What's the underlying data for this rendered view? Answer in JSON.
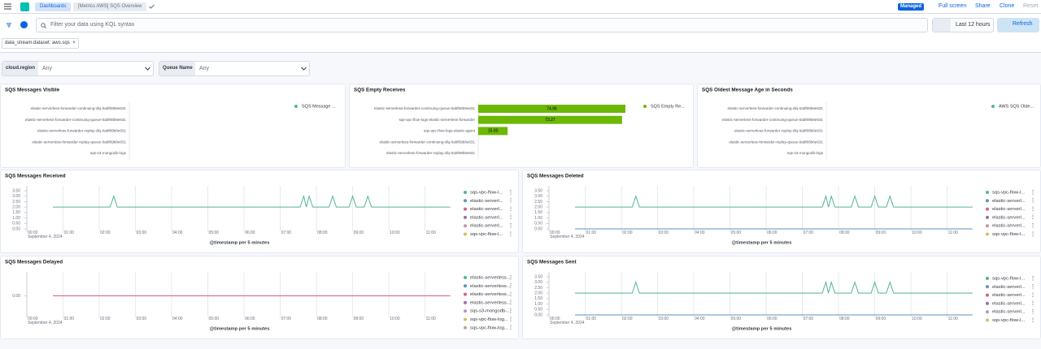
{
  "header": {
    "breadcrumbs": [
      "Dashboards",
      "[Metrics AWS] SQS Overview"
    ],
    "badge": "Managed",
    "actions": [
      "Full screen",
      "Share",
      "Clone",
      "Reset"
    ]
  },
  "query": {
    "placeholder": "Filter your data using KQL syntax",
    "time_range": "Last 12 hours",
    "refresh": "Refresh"
  },
  "filters": [
    "data_stream.dataset: aws.sqs"
  ],
  "controls": [
    {
      "label": "cloud.region",
      "value": "Any"
    },
    {
      "label": "Queue Name",
      "value": "Any"
    }
  ],
  "chart_data": [
    {
      "type": "bar",
      "orientation": "horizontal",
      "title": "SQS Messages Visible",
      "categories": [
        "elastic-serverless-forwarder-continuing-dlq-0abf89b8e631",
        "elastic-serverless-forwarder-continuing-queue-0abf89b8e631",
        "elastic-serverless-forwarder-replay-dlq-0abf89b8e631",
        "elastic-serverless-forwarder-replay-queue-0abf89b8e631",
        "sqs-s3-mongodb-logs"
      ],
      "series": [
        {
          "name": "SQS Message ...",
          "color": "#54b399",
          "values": [
            0,
            0,
            0,
            0,
            0
          ]
        }
      ]
    },
    {
      "type": "bar",
      "orientation": "horizontal",
      "title": "SQS Empty Receives",
      "categories": [
        "elastic-serverless-forwarder-continuing-queue-0abf89b8e631",
        "sqs-vpc-flow-logs-elastic-serverless-forwarder",
        "sqs-vpc-flow-logs-elastic-agent",
        "elastic-serverless-forwarder-continuing-dlq-0abf89b8e631",
        "elastic-serverless-forwarder-replay-dlq-0abf89b8e631"
      ],
      "series": [
        {
          "name": "SQS Empty Re...",
          "color": "#6cb804",
          "values": [
            74.96,
            73.27,
            15,
            0,
            0
          ],
          "value_labels": [
            "74.96",
            "73.27",
            "15.00",
            null,
            null
          ]
        }
      ]
    },
    {
      "type": "bar",
      "orientation": "horizontal",
      "title": "SQS Oldest Message Age in Seconds",
      "categories": [
        "elastic-serverless-forwarder-continuing-dlq-0abf89b8e631",
        "elastic-serverless-forwarder-continuing-queue-0abf89b8e631",
        "elastic-serverless-forwarder-replay-dlq-0abf89b8e631",
        "elastic-serverless-forwarder-replay-queue-0abf89b8e631",
        "sqs-s3-mongodb-logs"
      ],
      "series": [
        {
          "name": "AWS SQS Olde...",
          "color": "#54b399",
          "values": [
            0,
            0,
            0,
            0,
            0
          ]
        }
      ]
    },
    {
      "type": "line",
      "title": "SQS Messages Received",
      "xlabel": "@timestamp per 5 minutes",
      "x_date": "September 4, 2024",
      "xlim": [
        0,
        11.75
      ],
      "xticks": [
        {
          "value": 0,
          "label": "00:00"
        },
        {
          "value": 1,
          "label": "01:00"
        },
        {
          "value": 2,
          "label": "02:00"
        },
        {
          "value": 3,
          "label": "03:00"
        },
        {
          "value": 4,
          "label": "04:00"
        },
        {
          "value": 5,
          "label": "05:00"
        },
        {
          "value": 6,
          "label": "06:00"
        },
        {
          "value": 7,
          "label": "07:00"
        },
        {
          "value": 8,
          "label": "08:00"
        },
        {
          "value": 9,
          "label": "09:00"
        },
        {
          "value": 10,
          "label": "10:00"
        },
        {
          "value": 11,
          "label": "11:00"
        }
      ],
      "ylim": [
        0,
        3.5
      ],
      "yticks": [
        {
          "value": 0,
          "label": "0.00"
        },
        {
          "value": 0.5,
          "label": "0.50"
        },
        {
          "value": 1,
          "label": "1.00"
        },
        {
          "value": 1.5,
          "label": "1.50"
        },
        {
          "value": 2,
          "label": "2.00"
        },
        {
          "value": 2.5,
          "label": "2.50"
        },
        {
          "value": 3,
          "label": "3.00"
        },
        {
          "value": 3.5,
          "label": "3.50"
        }
      ],
      "x": [
        0.72,
        2.3,
        2.4,
        2.5,
        7.55,
        7.65,
        7.72,
        7.8,
        7.9,
        8.35,
        8.45,
        8.55,
        8.9,
        9.0,
        9.1,
        9.32,
        9.42,
        9.52,
        11.7
      ],
      "series": [
        {
          "name": "sqs-vpc-flow-l...",
          "color": "#54b399",
          "values": [
            2,
            2,
            3,
            2,
            2,
            3,
            2,
            3,
            2,
            2,
            3,
            2,
            2,
            3,
            2,
            2,
            3,
            2,
            2
          ]
        },
        {
          "name": "elastic-serverl...",
          "color": "#6092c0",
          "values": [
            null,
            null,
            null,
            null,
            null,
            null,
            null,
            null,
            null,
            null,
            null,
            null,
            null,
            null,
            null,
            null,
            null,
            null,
            null
          ]
        },
        {
          "name": "elastic-serverl...",
          "color": "#d36086",
          "values": [
            null,
            null,
            null,
            null,
            null,
            null,
            null,
            null,
            null,
            null,
            null,
            null,
            null,
            null,
            null,
            null,
            null,
            null,
            null
          ]
        },
        {
          "name": "elastic-serverl...",
          "color": "#9170b8",
          "values": [
            null,
            null,
            null,
            null,
            null,
            null,
            null,
            null,
            null,
            null,
            null,
            null,
            null,
            null,
            null,
            null,
            null,
            null,
            null
          ]
        },
        {
          "name": "elastic-serverl...",
          "color": "#ca8eae",
          "values": [
            null,
            null,
            null,
            null,
            null,
            null,
            null,
            null,
            null,
            null,
            null,
            null,
            null,
            null,
            null,
            null,
            null,
            null,
            null
          ]
        },
        {
          "name": "sqs-vpc-flow-l...",
          "color": "#d6bf57",
          "values": [
            null,
            null,
            null,
            null,
            null,
            null,
            null,
            null,
            null,
            null,
            null,
            null,
            null,
            null,
            null,
            null,
            null,
            null,
            null
          ]
        }
      ]
    },
    {
      "type": "line",
      "title": "SQS Messages Deleted",
      "xlabel": "@timestamp per 5 minutes",
      "x_date": "September 4, 2024",
      "xlim": [
        0,
        11.75
      ],
      "xticks": [
        {
          "value": 0,
          "label": "00:00"
        },
        {
          "value": 1,
          "label": "01:00"
        },
        {
          "value": 2,
          "label": "02:00"
        },
        {
          "value": 3,
          "label": "03:00"
        },
        {
          "value": 4,
          "label": "04:00"
        },
        {
          "value": 5,
          "label": "05:00"
        },
        {
          "value": 6,
          "label": "06:00"
        },
        {
          "value": 7,
          "label": "07:00"
        },
        {
          "value": 8,
          "label": "08:00"
        },
        {
          "value": 9,
          "label": "09:00"
        },
        {
          "value": 10,
          "label": "10:00"
        },
        {
          "value": 11,
          "label": "11:00"
        }
      ],
      "ylim": [
        0,
        3.5
      ],
      "yticks": [
        {
          "value": 0,
          "label": "0.00"
        },
        {
          "value": 0.5,
          "label": "0.50"
        },
        {
          "value": 1,
          "label": "1.00"
        },
        {
          "value": 1.5,
          "label": "1.50"
        },
        {
          "value": 2,
          "label": "2.00"
        },
        {
          "value": 2.5,
          "label": "2.50"
        },
        {
          "value": 3,
          "label": "3.00"
        },
        {
          "value": 3.5,
          "label": "3.50"
        }
      ],
      "x": [
        0.72,
        2.3,
        2.4,
        2.5,
        7.55,
        7.65,
        7.72,
        7.8,
        7.9,
        8.35,
        8.45,
        8.55,
        8.9,
        9.0,
        9.1,
        9.32,
        9.42,
        9.52,
        11.7
      ],
      "series": [
        {
          "name": "sqs-vpc-flow-l...",
          "color": "#54b399",
          "values": [
            2,
            2,
            3,
            2,
            2,
            3,
            2,
            3,
            2,
            2,
            3,
            2,
            2,
            3,
            2,
            2,
            3,
            2,
            2
          ]
        },
        {
          "name": "elastic-serverl...",
          "color": "#6092c0",
          "values": [
            0,
            0,
            0,
            0,
            0,
            0,
            0,
            0,
            0,
            0,
            0,
            0,
            0,
            0,
            0,
            0,
            0,
            0,
            0
          ]
        },
        {
          "name": "elastic-serverl...",
          "color": "#d36086",
          "values": [
            null,
            null,
            null,
            null,
            null,
            null,
            null,
            null,
            null,
            null,
            null,
            null,
            null,
            null,
            null,
            null,
            null,
            null,
            null
          ]
        },
        {
          "name": "elastic-serverl...",
          "color": "#9170b8",
          "values": [
            null,
            null,
            null,
            null,
            null,
            null,
            null,
            null,
            null,
            null,
            null,
            null,
            null,
            null,
            null,
            null,
            null,
            null,
            null
          ]
        },
        {
          "name": "elastic-serverl...",
          "color": "#ca8eae",
          "values": [
            null,
            null,
            null,
            null,
            null,
            null,
            null,
            null,
            null,
            null,
            null,
            null,
            null,
            null,
            null,
            null,
            null,
            null,
            null
          ]
        },
        {
          "name": "sqs-vpc-flow-l...",
          "color": "#d6bf57",
          "values": [
            null,
            null,
            null,
            null,
            null,
            null,
            null,
            null,
            null,
            null,
            null,
            null,
            null,
            null,
            null,
            null,
            null,
            null,
            null
          ]
        }
      ]
    },
    {
      "type": "line",
      "title": "SQS Messages Delayed",
      "xlabel": "@timestamp per 5 minutes",
      "x_date": "September 4, 2024",
      "xlim": [
        0,
        11.75
      ],
      "xticks": [
        {
          "value": 0,
          "label": "00:00"
        },
        {
          "value": 1,
          "label": "01:00"
        },
        {
          "value": 2,
          "label": "02:00"
        },
        {
          "value": 3,
          "label": "03:00"
        },
        {
          "value": 4,
          "label": "04:00"
        },
        {
          "value": 5,
          "label": "05:00"
        },
        {
          "value": 6,
          "label": "06:00"
        },
        {
          "value": 7,
          "label": "07:00"
        },
        {
          "value": 8,
          "label": "08:00"
        },
        {
          "value": 9,
          "label": "09:00"
        },
        {
          "value": 10,
          "label": "10:00"
        },
        {
          "value": 11,
          "label": "11:00"
        }
      ],
      "ylim": [
        -1,
        1
      ],
      "yticks": [
        {
          "value": 0,
          "label": "0.00"
        }
      ],
      "x": [
        0.72,
        11.7
      ],
      "series": [
        {
          "name": "elastic-serverless...",
          "color": "#54b399",
          "values": [
            null,
            null
          ]
        },
        {
          "name": "elastic-serverless...",
          "color": "#6092c0",
          "values": [
            null,
            null
          ]
        },
        {
          "name": "elastic-serverless...",
          "color": "#d36086",
          "values": [
            0,
            0
          ]
        },
        {
          "name": "elastic-serverless...",
          "color": "#9170b8",
          "values": [
            null,
            null
          ]
        },
        {
          "name": "sqs-s3-mongodb-...",
          "color": "#ca8eae",
          "values": [
            null,
            null
          ]
        },
        {
          "name": "sqs-vpc-flow-log...",
          "color": "#d6bf57",
          "values": [
            null,
            null
          ]
        },
        {
          "name": "sqs-vpc-flow-log...",
          "color": "#b9a888",
          "values": [
            null,
            null
          ]
        }
      ]
    },
    {
      "type": "line",
      "title": "SQS Messages Sent",
      "xlabel": "@timestamp per 5 minutes",
      "x_date": "September 4, 2024",
      "xlim": [
        0,
        11.75
      ],
      "xticks": [
        {
          "value": 0,
          "label": "00:00"
        },
        {
          "value": 1,
          "label": "01:00"
        },
        {
          "value": 2,
          "label": "02:00"
        },
        {
          "value": 3,
          "label": "03:00"
        },
        {
          "value": 4,
          "label": "04:00"
        },
        {
          "value": 5,
          "label": "05:00"
        },
        {
          "value": 6,
          "label": "06:00"
        },
        {
          "value": 7,
          "label": "07:00"
        },
        {
          "value": 8,
          "label": "08:00"
        },
        {
          "value": 9,
          "label": "09:00"
        },
        {
          "value": 10,
          "label": "10:00"
        },
        {
          "value": 11,
          "label": "11:00"
        }
      ],
      "ylim": [
        0,
        3.5
      ],
      "yticks": [
        {
          "value": 0,
          "label": "0.00"
        },
        {
          "value": 0.5,
          "label": "0.50"
        },
        {
          "value": 1,
          "label": "1.00"
        },
        {
          "value": 1.5,
          "label": "1.50"
        },
        {
          "value": 2,
          "label": "2.00"
        },
        {
          "value": 2.5,
          "label": "2.50"
        },
        {
          "value": 3,
          "label": "3.00"
        },
        {
          "value": 3.5,
          "label": "3.50"
        }
      ],
      "x": [
        0.72,
        2.3,
        2.4,
        2.5,
        7.55,
        7.65,
        7.72,
        7.8,
        7.9,
        8.35,
        8.45,
        8.55,
        8.9,
        9.0,
        9.1,
        9.32,
        9.42,
        9.52,
        11.7
      ],
      "series": [
        {
          "name": "sqs-vpc-flow-l...",
          "color": "#54b399",
          "values": [
            2,
            2,
            3,
            2,
            2,
            3,
            2,
            3,
            2,
            2,
            3,
            2,
            2,
            3,
            2,
            2,
            3,
            2,
            2
          ]
        },
        {
          "name": "elastic-serverl...",
          "color": "#6092c0",
          "values": [
            0,
            0,
            0,
            0,
            0,
            0,
            0,
            0,
            0,
            0,
            0,
            0,
            0,
            0,
            0,
            0,
            0,
            0,
            0
          ]
        },
        {
          "name": "elastic-serverl...",
          "color": "#d36086",
          "values": [
            null,
            null,
            null,
            null,
            null,
            null,
            null,
            null,
            null,
            null,
            null,
            null,
            null,
            null,
            null,
            null,
            null,
            null,
            null
          ]
        },
        {
          "name": "elastic-serverl...",
          "color": "#9170b8",
          "values": [
            null,
            null,
            null,
            null,
            null,
            null,
            null,
            null,
            null,
            null,
            null,
            null,
            null,
            null,
            null,
            null,
            null,
            null,
            null
          ]
        },
        {
          "name": "elastic-serverl...",
          "color": "#ca8eae",
          "values": [
            null,
            null,
            null,
            null,
            null,
            null,
            null,
            null,
            null,
            null,
            null,
            null,
            null,
            null,
            null,
            null,
            null,
            null,
            null
          ]
        },
        {
          "name": "sqs-vpc-flow-l...",
          "color": "#d6bf57",
          "values": [
            null,
            null,
            null,
            null,
            null,
            null,
            null,
            null,
            null,
            null,
            null,
            null,
            null,
            null,
            null,
            null,
            null,
            null,
            null
          ]
        }
      ]
    }
  ]
}
